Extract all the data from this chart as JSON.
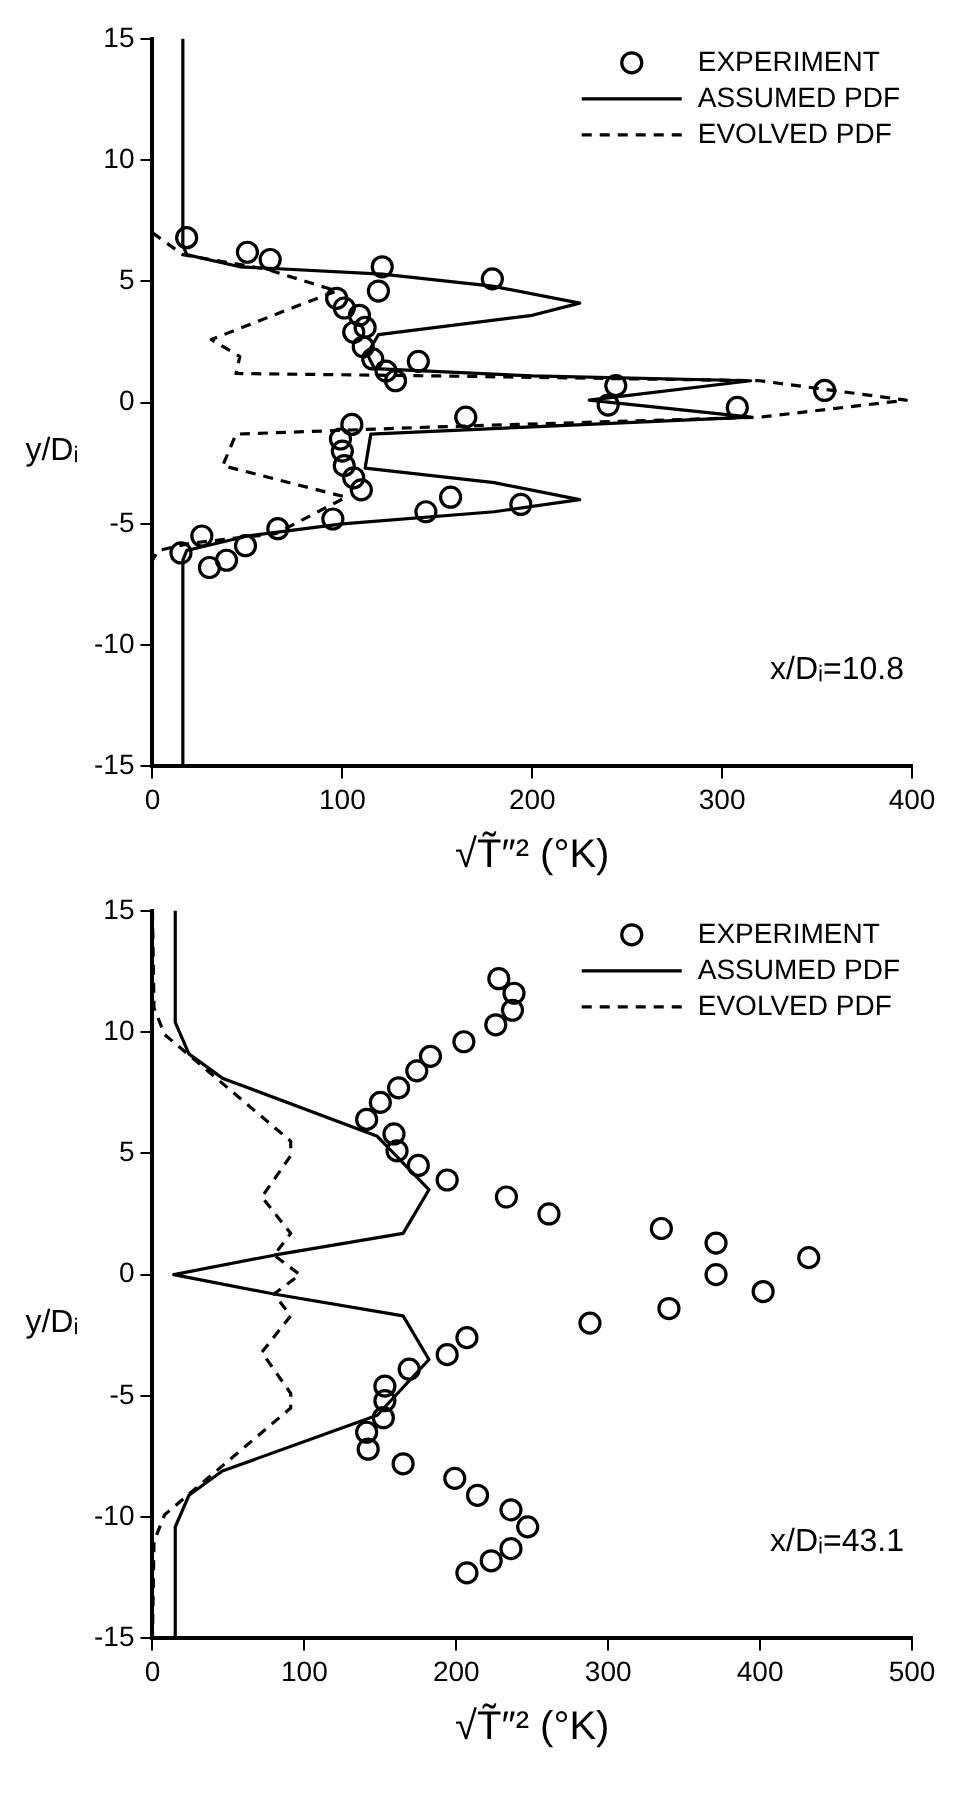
{
  "chart_data": [
    {
      "type": "scatter",
      "xlabel": "√T̃″² (°K)",
      "ylabel": "y/Dᵢ",
      "annotations": [
        "x/Dᵢ=10.8"
      ],
      "xlim": [
        0,
        400
      ],
      "xticks": [
        0,
        100,
        200,
        300,
        400
      ],
      "ylim": [
        -15,
        15
      ],
      "yticks": [
        -15,
        -10,
        -5,
        0,
        5,
        10,
        15
      ],
      "grid": false,
      "legend": "top right",
      "series": [
        {
          "name": "EXPERIMENT",
          "type": "scatter",
          "marker": "circle",
          "color": "#000000",
          "x": [
            18,
            50,
            62,
            121,
            119,
            179,
            97,
            101,
            109,
            112,
            106,
            111,
            116,
            140,
            123,
            128,
            244,
            240,
            308,
            354,
            165,
            105,
            99,
            100,
            101,
            106,
            110,
            157,
            144,
            194,
            95,
            66,
            49,
            26,
            15,
            30,
            39
          ],
          "values": [
            6.8,
            6.2,
            5.9,
            5.6,
            4.6,
            5.1,
            4.3,
            3.9,
            3.6,
            3.1,
            2.9,
            2.3,
            1.8,
            1.7,
            1.3,
            0.9,
            0.7,
            -0.1,
            -0.2,
            0.5,
            -0.6,
            -0.9,
            -1.5,
            -2.0,
            -2.6,
            -3.1,
            -3.6,
            -3.9,
            -4.5,
            -4.2,
            -4.8,
            -5.2,
            -5.9,
            -5.5,
            -6.2,
            -6.8,
            -6.5
          ]
        },
        {
          "name": "ASSUMED PDF",
          "type": "line",
          "marker": "none",
          "line_style": "solid",
          "color": "#000000",
          "x": [
            16,
            16,
            18,
            46,
            121,
            179,
            225,
            200,
            119,
            113,
            117,
            200,
            315,
            230,
            315,
            200,
            115,
            112,
            180,
            225,
            180,
            100,
            50,
            18,
            16,
            16
          ],
          "values": [
            15,
            6.5,
            6.1,
            5.6,
            5.3,
            4.8,
            4.1,
            3.6,
            2.8,
            2.0,
            1.4,
            1.1,
            0.9,
            0.1,
            -0.6,
            -1.0,
            -1.3,
            -2.7,
            -3.3,
            -4.0,
            -4.5,
            -5.0,
            -5.5,
            -6.1,
            -6.5,
            -15
          ]
        },
        {
          "name": "EVOLVED PDF",
          "type": "line",
          "marker": "none",
          "line_style": "dashed",
          "color": "#000000",
          "x": [
            0,
            16,
            60,
            97,
            80,
            31,
            46,
            44,
            150,
            320,
            397,
            320,
            150,
            44,
            37,
            102,
            65,
            20,
            3,
            0
          ],
          "values": [
            7.0,
            6.1,
            5.5,
            4.6,
            4.1,
            2.6,
            1.9,
            1.2,
            1.1,
            0.9,
            0.1,
            -0.6,
            -1.0,
            -1.3,
            -2.6,
            -3.9,
            -5.4,
            -5.8,
            -6.1,
            -6.5
          ]
        }
      ]
    },
    {
      "type": "scatter",
      "xlabel": "√T̃″² (°K)",
      "ylabel": "y/Dᵢ",
      "annotations": [
        "x/Dᵢ=43.1"
      ],
      "xlim": [
        0,
        500
      ],
      "xticks": [
        0,
        100,
        200,
        300,
        400,
        500
      ],
      "ylim": [
        -15,
        15
      ],
      "yticks": [
        -15,
        -10,
        -5,
        0,
        5,
        10,
        15
      ],
      "grid": false,
      "legend": "top right",
      "series": [
        {
          "name": "EXPERIMENT",
          "type": "scatter",
          "marker": "circle",
          "color": "#000000",
          "x": [
            228,
            238,
            237,
            226,
            205,
            183,
            174,
            162,
            150,
            141,
            159,
            161,
            175,
            194,
            233,
            261,
            335,
            371,
            371,
            432,
            402,
            340,
            288,
            207,
            194,
            169,
            153,
            153,
            152,
            141,
            142,
            165,
            199,
            214,
            236,
            247,
            207,
            223,
            236
          ],
          "values": [
            12.2,
            11.6,
            10.9,
            10.3,
            9.6,
            9.0,
            8.4,
            7.7,
            7.1,
            6.4,
            5.8,
            5.1,
            4.5,
            3.9,
            3.2,
            2.5,
            1.9,
            1.3,
            0.0,
            0.7,
            -0.7,
            -1.4,
            -2.0,
            -2.6,
            -3.3,
            -3.9,
            -4.6,
            -5.2,
            -5.9,
            -6.5,
            -7.2,
            -7.8,
            -8.4,
            -9.1,
            -9.7,
            -10.4,
            -12.3,
            -11.8,
            -11.3
          ]
        },
        {
          "name": "ASSUMED PDF",
          "type": "line",
          "marker": "none",
          "line_style": "solid",
          "color": "#000000",
          "x": [
            15,
            15,
            24,
            46,
            148,
            182,
            165,
            80,
            14,
            80,
            165,
            182,
            148,
            46,
            24,
            15,
            15
          ],
          "values": [
            15,
            10.4,
            9.1,
            8.1,
            5.7,
            3.5,
            1.7,
            0.8,
            0,
            -0.8,
            -1.7,
            -3.5,
            -5.8,
            -8.1,
            -9.1,
            -10.4,
            -15
          ]
        },
        {
          "name": "EVOLVED PDF",
          "type": "line",
          "marker": "none",
          "line_style": "dashed",
          "color": "#000000",
          "x": [
            0,
            1,
            8,
            42,
            91,
            91,
            72,
            91,
            80,
            97,
            80,
            91,
            72,
            91,
            91,
            42,
            8,
            1,
            0
          ],
          "values": [
            15,
            11.0,
            9.9,
            8.1,
            5.5,
            4.9,
            3.2,
            1.7,
            0.8,
            0,
            -0.8,
            -1.7,
            -3.2,
            -4.9,
            -5.5,
            -8.1,
            -9.9,
            -11.0,
            -15
          ]
        }
      ]
    }
  ]
}
